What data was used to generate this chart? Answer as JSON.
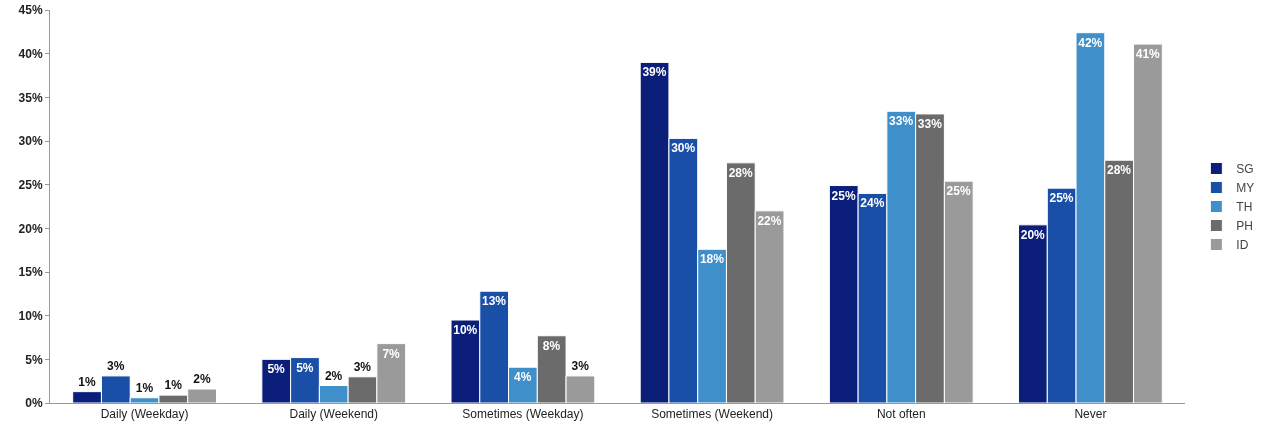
{
  "chart_data": {
    "type": "bar",
    "categories": [
      "Daily (Weekday)",
      "Daily (Weekend)",
      "Sometimes (Weekday)",
      "Sometimes (Weekend)",
      "Not often",
      "Never"
    ],
    "series": [
      {
        "name": "SG",
        "color": "#0b1f7a",
        "values": [
          1.3,
          5.0,
          9.5,
          39.0,
          24.9,
          20.4
        ],
        "value_labels": [
          "1%",
          "5%",
          "10%",
          "39%",
          "25%",
          "20%"
        ]
      },
      {
        "name": "MY",
        "color": "#1a4fa8",
        "values": [
          3.1,
          5.2,
          12.8,
          30.3,
          24.0,
          24.6
        ],
        "value_labels": [
          "3%",
          "5%",
          "13%",
          "30%",
          "24%",
          "25%"
        ]
      },
      {
        "name": "TH",
        "color": "#3f8fcb",
        "values": [
          0.6,
          2.0,
          4.1,
          17.6,
          33.4,
          42.4
        ],
        "value_labels": [
          "1%",
          "2%",
          "4%",
          "18%",
          "33%",
          "42%"
        ]
      },
      {
        "name": "PH",
        "color": "#6b6b6b",
        "values": [
          0.9,
          3.0,
          7.7,
          27.5,
          33.1,
          27.8
        ],
        "value_labels": [
          "1%",
          "3%",
          "8%",
          "28%",
          "33%",
          "28%"
        ]
      },
      {
        "name": "ID",
        "color": "#9a9a9a",
        "values": [
          1.6,
          6.8,
          3.1,
          22.0,
          25.4,
          41.1
        ],
        "value_labels": [
          "2%",
          "7%",
          "3%",
          "22%",
          "25%",
          "41%"
        ]
      }
    ],
    "ylim": [
      0,
      45
    ],
    "yticks": [
      {
        "value": 0,
        "label": "0%"
      },
      {
        "value": 5,
        "label": "5%"
      },
      {
        "value": 10,
        "label": "10%"
      },
      {
        "value": 15,
        "label": "15%"
      },
      {
        "value": 20,
        "label": "20%"
      },
      {
        "value": 25,
        "label": "25%"
      },
      {
        "value": 30,
        "label": "30%"
      },
      {
        "value": 35,
        "label": "35%"
      },
      {
        "value": 40,
        "label": "40%"
      },
      {
        "value": 45,
        "label": "45%"
      }
    ],
    "grid": false,
    "legend": "right"
  }
}
